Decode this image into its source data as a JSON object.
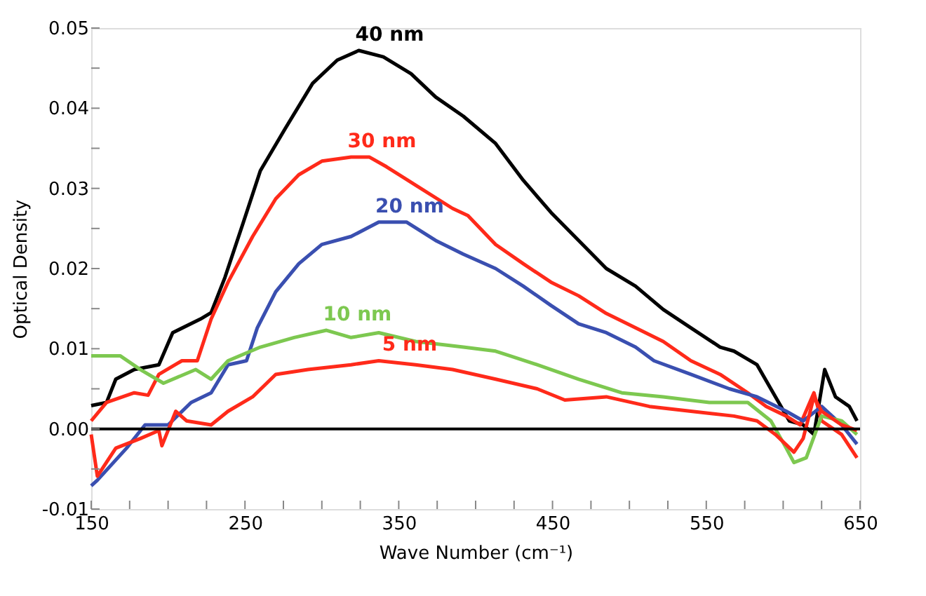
{
  "chart_data": {
    "type": "line",
    "xlabel": "Wave Number (cm⁻¹)",
    "ylabel": "Optical Density",
    "xlim": [
      150,
      650
    ],
    "ylim": [
      -0.01,
      0.05
    ],
    "xticks": [
      150,
      {
        "value": 175,
        "label": null
      },
      {
        "value": 200,
        "label": null
      },
      {
        "value": 225,
        "label": null
      },
      250,
      {
        "value": 275,
        "label": null
      },
      {
        "value": 300,
        "label": null
      },
      {
        "value": 325,
        "label": null
      },
      350,
      {
        "value": 375,
        "label": null
      },
      {
        "value": 400,
        "label": null
      },
      {
        "value": 425,
        "label": null
      },
      450,
      {
        "value": 475,
        "label": null
      },
      {
        "value": 500,
        "label": null
      },
      {
        "value": 525,
        "label": null
      },
      550,
      {
        "value": 575,
        "label": null
      },
      {
        "value": 600,
        "label": null
      },
      {
        "value": 625,
        "label": null
      },
      650
    ],
    "yticks": [
      -0.01,
      {
        "value": -0.005,
        "label": null
      },
      {
        "value": 0,
        "label": "0.00"
      },
      {
        "value": 0.005,
        "label": null
      },
      0.01,
      {
        "value": 0.015,
        "label": null
      },
      0.02,
      {
        "value": 0.025,
        "label": null
      },
      0.03,
      {
        "value": 0.035,
        "label": null
      },
      0.04,
      {
        "value": 0.045,
        "label": null
      },
      0.05
    ],
    "grid": false,
    "legend": false,
    "marker": "none",
    "line_style": "solid",
    "ref_lines": [
      {
        "axis": "y",
        "value": 0,
        "color": "#000000"
      }
    ],
    "series": [
      {
        "name": "40 nm",
        "color": "#000000",
        "x": [
          150,
          160,
          166,
          178,
          194,
          203,
          221,
          228,
          237,
          249,
          260,
          276,
          294,
          310,
          324,
          340,
          358,
          374,
          392,
          413,
          431,
          449,
          467,
          485,
          504,
          522,
          540,
          559,
          568,
          583,
          595,
          604,
          613,
          620,
          627,
          634,
          643,
          648
        ],
        "values": [
          0.0029,
          0.0033,
          0.0062,
          0.0074,
          0.008,
          0.012,
          0.0137,
          0.0145,
          0.0189,
          0.0258,
          0.0322,
          0.0374,
          0.0431,
          0.046,
          0.0472,
          0.0464,
          0.0443,
          0.0414,
          0.039,
          0.0356,
          0.031,
          0.027,
          0.0235,
          0.02,
          0.0178,
          0.0149,
          0.0126,
          0.0102,
          0.0097,
          0.008,
          0.004,
          0.001,
          0.0005,
          -0.0007,
          0.0074,
          0.004,
          0.0028,
          0.001
        ]
      },
      {
        "name": "30 nm",
        "color": "#ff2a1a",
        "x": [
          150,
          160,
          178,
          187,
          194,
          209,
          219,
          228,
          239,
          255,
          270,
          285,
          300,
          319,
          331,
          342,
          361,
          385,
          395,
          413,
          431,
          449,
          467,
          485,
          504,
          522,
          540,
          559,
          577,
          589,
          602,
          611,
          620,
          625,
          638,
          648
        ],
        "values": [
          0.001,
          0.0033,
          0.0045,
          0.0042,
          0.0068,
          0.0085,
          0.0085,
          0.0137,
          0.0183,
          0.024,
          0.0287,
          0.0317,
          0.0334,
          0.0339,
          0.0339,
          0.0327,
          0.0304,
          0.0275,
          0.0266,
          0.023,
          0.0206,
          0.0183,
          0.0166,
          0.0144,
          0.0126,
          0.0109,
          0.0085,
          0.0068,
          0.0045,
          0.0028,
          0.0016,
          0.0005,
          0.0045,
          0.001,
          -0.0007,
          -0.0036
        ]
      },
      {
        "name": "20 nm",
        "color": "#3a4fb0",
        "x": [
          150,
          154,
          173,
          185,
          200,
          215,
          228,
          239,
          251,
          258,
          270,
          285,
          300,
          319,
          337,
          355,
          374,
          392,
          413,
          431,
          449,
          467,
          485,
          504,
          516,
          540,
          565,
          583,
          602,
          613,
          625,
          638,
          648
        ],
        "values": [
          -0.0071,
          -0.0064,
          -0.0024,
          0.0005,
          0.0005,
          0.0033,
          0.0045,
          0.008,
          0.0085,
          0.0126,
          0.0171,
          0.0206,
          0.023,
          0.024,
          0.0258,
          0.0258,
          0.0235,
          0.0218,
          0.02,
          0.0178,
          0.0154,
          0.0131,
          0.012,
          0.0102,
          0.0085,
          0.0068,
          0.005,
          0.004,
          0.0022,
          0.001,
          0.0028,
          0.0005,
          -0.0019
        ]
      },
      {
        "name": "10 nm",
        "color": "#7dc850",
        "x": [
          150,
          169,
          182,
          197,
          218,
          228,
          239,
          260,
          282,
          303,
          319,
          337,
          361,
          392,
          413,
          440,
          467,
          495,
          522,
          552,
          577,
          592,
          602,
          607,
          615,
          625,
          638,
          648
        ],
        "values": [
          0.0091,
          0.0091,
          0.0074,
          0.0057,
          0.0074,
          0.0062,
          0.0085,
          0.0102,
          0.0114,
          0.0123,
          0.0114,
          0.012,
          0.0109,
          0.0102,
          0.0097,
          0.008,
          0.0062,
          0.0045,
          0.004,
          0.0033,
          0.0033,
          0.001,
          -0.0024,
          -0.0042,
          -0.0036,
          0.0016,
          0.001,
          -0.0007
        ]
      },
      {
        "name": "5 nm",
        "color": "#ff2a1a",
        "x": [
          150,
          154,
          166,
          182,
          194,
          196,
          205,
          212,
          228,
          239,
          255,
          270,
          291,
          319,
          337,
          361,
          385,
          413,
          440,
          458,
          485,
          513,
          540,
          568,
          583,
          595,
          607,
          613,
          620,
          625,
          638,
          648
        ],
        "values": [
          -0.0007,
          -0.0059,
          -0.0024,
          -0.0012,
          -0.0002,
          -0.0021,
          0.0022,
          0.001,
          0.0005,
          0.0022,
          0.004,
          0.0068,
          0.0074,
          0.008,
          0.0085,
          0.008,
          0.0074,
          0.0062,
          0.005,
          0.0036,
          0.004,
          0.0028,
          0.0022,
          0.0016,
          0.001,
          -0.0007,
          -0.0029,
          -0.0012,
          0.004,
          0.0022,
          0.0005,
          -0.0002
        ]
      }
    ]
  }
}
